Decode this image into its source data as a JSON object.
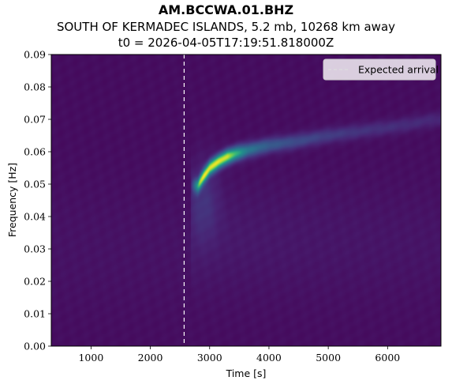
{
  "chart_data": {
    "type": "heatmap",
    "title": "AM.BCCWA.01.BHZ",
    "subtitle_1": "SOUTH OF KERMADEC ISLANDS, 5.2 mb, 10268 km away",
    "subtitle_2": "t0 = 2026-04-05T17:19:51.818000Z",
    "xlabel": "Time [s]",
    "ylabel": "Frequency [Hz]",
    "xlim": [
      330,
      6900
    ],
    "ylim": [
      0,
      0.09
    ],
    "x_ticks": [
      1000,
      2000,
      3000,
      4000,
      5000,
      6000
    ],
    "y_ticks": [
      0.0,
      0.01,
      0.02,
      0.03,
      0.04,
      0.05,
      0.06,
      0.07,
      0.08,
      0.09
    ],
    "x_tick_labels": [
      "1000",
      "2000",
      "3000",
      "4000",
      "5000",
      "6000"
    ],
    "y_tick_labels": [
      "0.00",
      "0.01",
      "0.02",
      "0.03",
      "0.04",
      "0.05",
      "0.06",
      "0.07",
      "0.08",
      "0.09"
    ],
    "colormap": "viridis",
    "grid": false,
    "expected_arrival": {
      "x": 2570,
      "style": "dashed",
      "color": "#ffffff",
      "label": "Expected arrival"
    },
    "legend": {
      "placement": "top-right",
      "entries": [
        "Expected arrival"
      ]
    },
    "energy_ridge": [
      {
        "x": 2800,
        "y": 0.0495,
        "intensity": 0.72
      },
      {
        "x": 2900,
        "y": 0.0525,
        "intensity": 0.85
      },
      {
        "x": 3000,
        "y": 0.055,
        "intensity": 0.88
      },
      {
        "x": 3150,
        "y": 0.057,
        "intensity": 0.92
      },
      {
        "x": 3300,
        "y": 0.0585,
        "intensity": 0.9
      },
      {
        "x": 3450,
        "y": 0.0595,
        "intensity": 0.7
      },
      {
        "x": 3650,
        "y": 0.0605,
        "intensity": 0.45
      },
      {
        "x": 4000,
        "y": 0.062,
        "intensity": 0.32
      },
      {
        "x": 4400,
        "y": 0.063,
        "intensity": 0.25
      },
      {
        "x": 5000,
        "y": 0.065,
        "intensity": 0.18
      },
      {
        "x": 5600,
        "y": 0.0665,
        "intensity": 0.14
      },
      {
        "x": 6200,
        "y": 0.068,
        "intensity": 0.12
      },
      {
        "x": 6800,
        "y": 0.07,
        "intensity": 0.1
      }
    ]
  },
  "colors": {
    "background_low": "#440154",
    "ridge_high": "#fde725"
  }
}
